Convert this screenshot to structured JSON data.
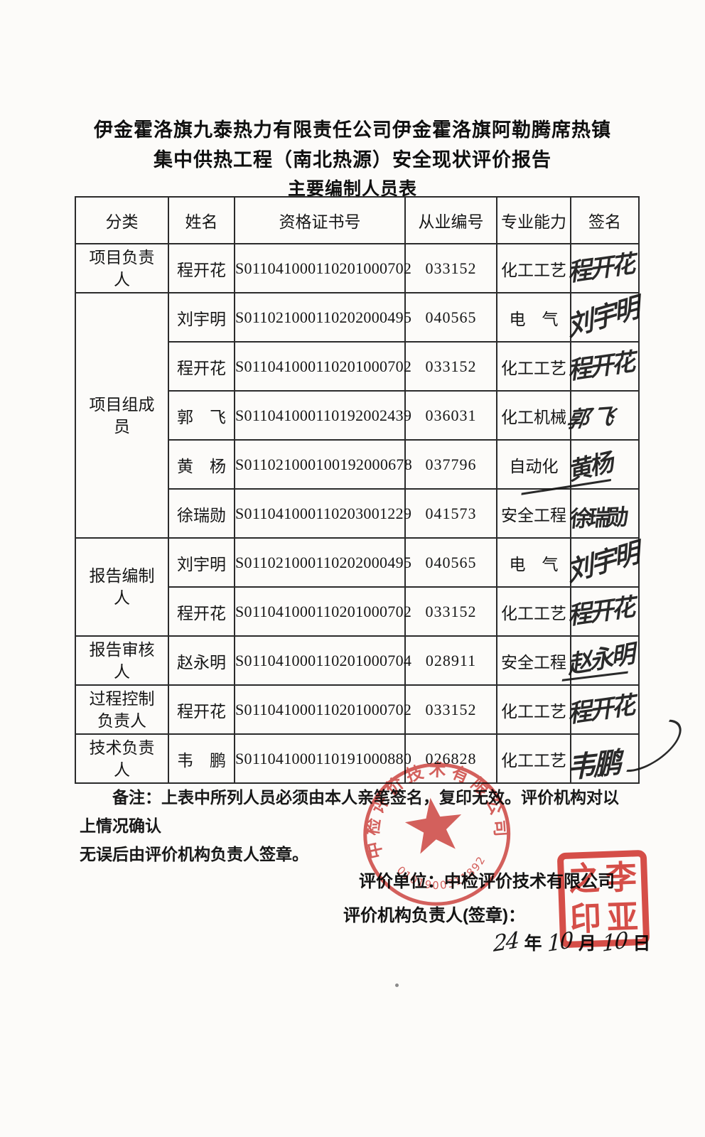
{
  "title": {
    "line1": "伊金霍洛旗九泰热力有限责任公司伊金霍洛旗阿勒腾席热镇",
    "line2": "集中供热工程（南北热源）安全现状评价报告",
    "line3": "主要编制人员表"
  },
  "table": {
    "headers": [
      "分类",
      "姓名",
      "资格证书号",
      "从业编号",
      "专业能力",
      "签名"
    ],
    "rows": [
      {
        "group": "项目负责人",
        "group_span": 1,
        "name": "程开花",
        "cert": "S011041000110201000702",
        "work_no": "033152",
        "skill": "化工工艺",
        "signature": "程开花"
      },
      {
        "group": "项目组成员",
        "group_span": 5,
        "name": "刘宇明",
        "cert": "S011021000110202000495",
        "work_no": "040565",
        "skill": "电　气",
        "signature": "刘宇明"
      },
      {
        "name": "程开花",
        "cert": "S011041000110201000702",
        "work_no": "033152",
        "skill": "化工工艺",
        "signature": "程开花"
      },
      {
        "name": "郭　飞",
        "cert": "S011041000110192002439",
        "work_no": "036031",
        "skill": "化工机械",
        "signature": "郭飞"
      },
      {
        "name": "黄　杨",
        "cert": "S011021000100192000678",
        "work_no": "037796",
        "skill": "自动化",
        "signature": "黄杨"
      },
      {
        "name": "徐瑞勋",
        "cert": "S011041000110203001229",
        "work_no": "041573",
        "skill": "安全工程",
        "signature": "徐瑞勋"
      },
      {
        "group": "报告编制人",
        "group_span": 2,
        "name": "刘宇明",
        "cert": "S011021000110202000495",
        "work_no": "040565",
        "skill": "电　气",
        "signature": "刘宇明"
      },
      {
        "name": "程开花",
        "cert": "S011041000110201000702",
        "work_no": "033152",
        "skill": "化工工艺",
        "signature": "程开花"
      },
      {
        "group": "报告审核人",
        "group_span": 1,
        "name": "赵永明",
        "cert": "S011041000110201000704",
        "work_no": "028911",
        "skill": "安全工程",
        "signature": "赵永明"
      },
      {
        "group": "过程控制负责人",
        "group_span": 1,
        "name": "程开花",
        "cert": "S011041000110201000702",
        "work_no": "033152",
        "skill": "化工工艺",
        "signature": "程开花"
      },
      {
        "group": "技术负责人",
        "group_span": 1,
        "name": "韦　鹏",
        "cert": "S011041000110191000880",
        "work_no": "026828",
        "skill": "化工工艺",
        "signature": "韦鹏"
      }
    ]
  },
  "note": {
    "line1": "备注：上表中所列人员必须由本人亲笔签名，复印无效。评价机构对以上情况确认",
    "line2": "无误后由评价机构负责人签章。"
  },
  "footer": {
    "org_line": "评价单位：中检评价技术有限公司",
    "sign_line": "评价机构负责人(签章)：",
    "date": {
      "year": "24",
      "year_label": "年",
      "month": "10",
      "month_label": "月",
      "day": "10",
      "day_label": "日"
    }
  },
  "stamps": {
    "round": {
      "company": "中检评价技术有限公司",
      "serial": "0101900311892",
      "color": "#c9302c"
    },
    "square": {
      "chars": [
        "之",
        "李",
        "印",
        "亚"
      ],
      "color": "#d3342e"
    }
  }
}
